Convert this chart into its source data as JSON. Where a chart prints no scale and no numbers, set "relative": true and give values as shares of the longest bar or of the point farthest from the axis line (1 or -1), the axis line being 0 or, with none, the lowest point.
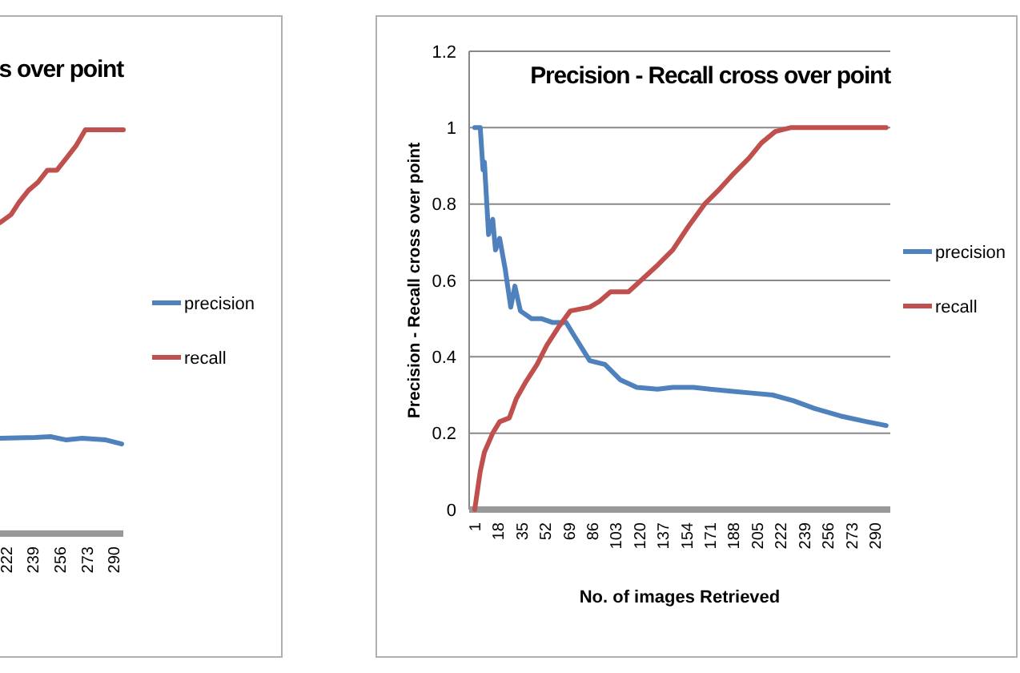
{
  "chart_data": [
    {
      "type": "line",
      "title": "s over point",
      "relative": true,
      "x": [
        218,
        225,
        230,
        236,
        242,
        248,
        254,
        260,
        266,
        272,
        296
      ],
      "xlim": [
        218,
        296
      ],
      "xticks": [
        222,
        239,
        256,
        273,
        290
      ],
      "tick_labels": "x",
      "legend": "right",
      "series": [
        {
          "name": "precision",
          "color": "#4f81bd",
          "x": [
            218,
            240,
            250,
            260,
            270,
            285,
            295
          ],
          "values": [
            0.236,
            0.238,
            0.24,
            0.232,
            0.236,
            0.232,
            0.222
          ]
        },
        {
          "name": "recall",
          "color": "#c0504d",
          "values": [
            0.77,
            0.79,
            0.82,
            0.85,
            0.87,
            0.9,
            0.9,
            0.93,
            0.96,
            1.0,
            1.0
          ]
        }
      ]
    },
    {
      "type": "line",
      "title": "Precision - Recall cross over point",
      "xlabel": "No. of images Retrieved",
      "ylabel": "Precision - Recall cross over point",
      "xlim": [
        -3,
        301
      ],
      "xticks": [
        1,
        18,
        35,
        52,
        69,
        86,
        103,
        120,
        137,
        154,
        171,
        188,
        205,
        222,
        239,
        256,
        273,
        290
      ],
      "ylim": [
        0,
        1.2
      ],
      "yticks": [
        0,
        0.2,
        0.4,
        0.6,
        0.8,
        1,
        1.2
      ],
      "grid": "y",
      "legend": "right",
      "series": [
        {
          "name": "precision",
          "color": "#4f81bd",
          "x": [
            1,
            5,
            7,
            8,
            11,
            14,
            16,
            19,
            23,
            27,
            30,
            34,
            42,
            49,
            57,
            67,
            72,
            84,
            95,
            106,
            118,
            133,
            144,
            159,
            171,
            186,
            201,
            216,
            231,
            246,
            265,
            284,
            298
          ],
          "values": [
            1.0,
            1.0,
            0.89,
            0.91,
            0.72,
            0.76,
            0.68,
            0.71,
            0.63,
            0.53,
            0.585,
            0.52,
            0.5,
            0.5,
            0.49,
            0.49,
            0.46,
            0.39,
            0.38,
            0.34,
            0.32,
            0.315,
            0.32,
            0.32,
            0.315,
            0.31,
            0.305,
            0.3,
            0.285,
            0.265,
            0.245,
            0.23,
            0.22
          ]
        },
        {
          "name": "recall",
          "color": "#c0504d",
          "x": [
            1,
            5,
            8,
            14,
            19,
            26,
            31,
            38,
            46,
            53,
            61,
            70,
            84,
            91,
            99,
            112,
            121,
            133,
            144,
            155,
            167,
            178,
            188,
            199,
            208,
            218,
            229,
            298
          ],
          "values": [
            0,
            0.1,
            0.15,
            0.2,
            0.23,
            0.24,
            0.29,
            0.335,
            0.38,
            0.43,
            0.475,
            0.52,
            0.53,
            0.545,
            0.57,
            0.57,
            0.6,
            0.64,
            0.68,
            0.74,
            0.8,
            0.84,
            0.88,
            0.92,
            0.96,
            0.99,
            1.0,
            1.0
          ]
        }
      ]
    }
  ]
}
